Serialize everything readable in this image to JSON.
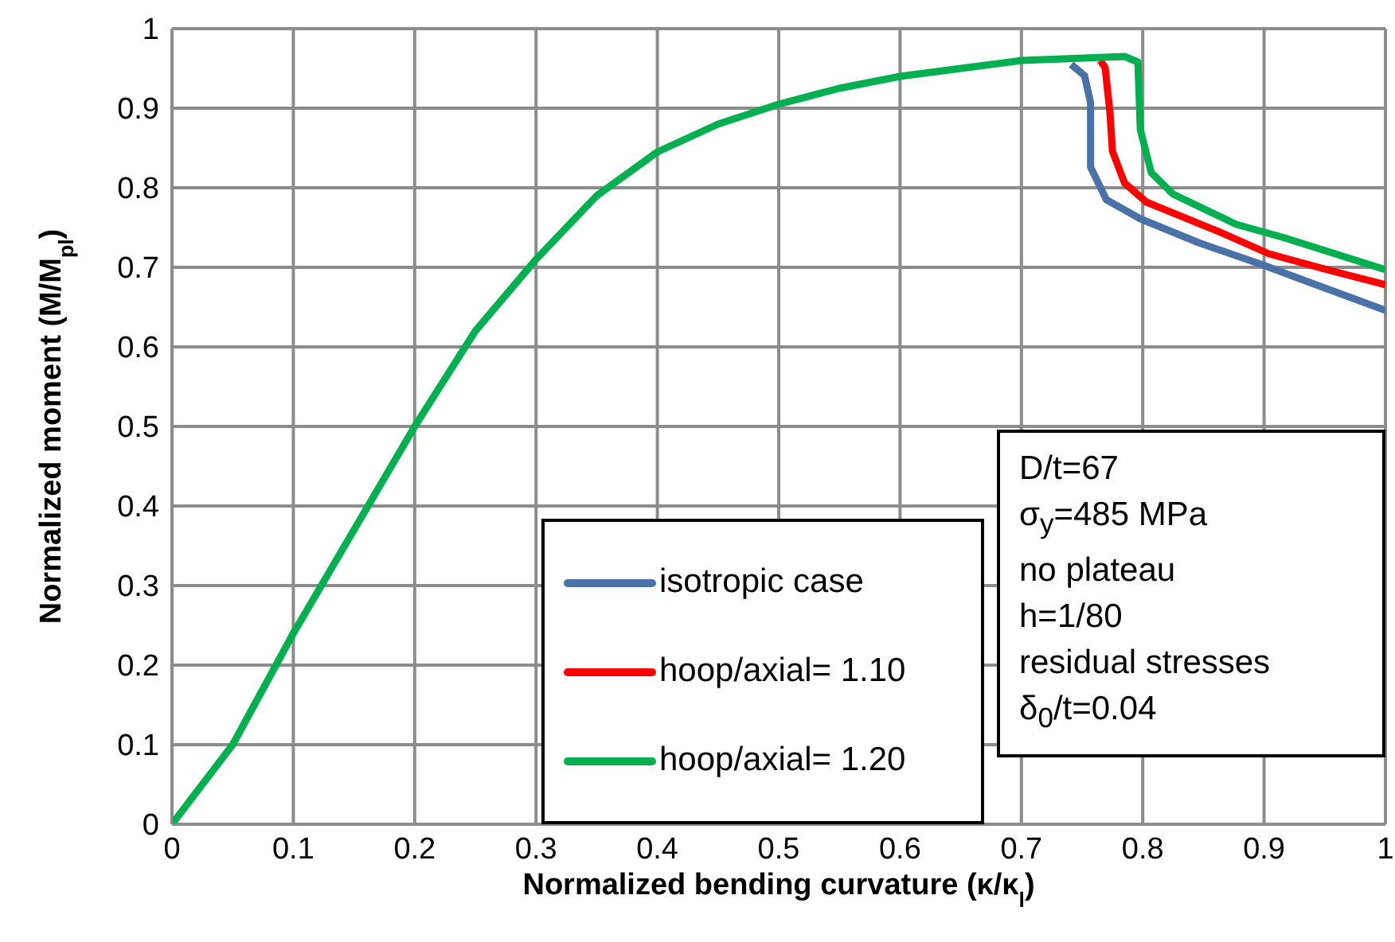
{
  "chart_data": {
    "type": "line",
    "xlabel": "Normalized bending curvature (κ/κ$_{l}$)",
    "ylabel": "Normalized moment (M/M$_{pl}$)",
    "xlim": [
      0,
      1
    ],
    "ylim": [
      0,
      1
    ],
    "xticks": [
      0,
      0.1,
      0.2,
      0.3,
      0.4,
      0.5,
      0.6,
      0.7,
      0.8,
      0.9,
      1
    ],
    "yticks": [
      0,
      0.1,
      0.2,
      0.3,
      0.4,
      0.5,
      0.6,
      0.7,
      0.8,
      0.9,
      1
    ],
    "grid": true,
    "legend": "bottom",
    "marker": "none",
    "line_style": "solid",
    "annotations": [
      "D/t=67",
      "σ$_{y}$=485 MPa",
      "no plateau",
      "h=1/80",
      "residual stresses",
      "δ$_{0}$/t=0.04"
    ],
    "series": [
      {
        "name": "isotropic case",
        "color": "#4a72a8",
        "x": [
          0.741,
          0.752,
          0.757,
          0.757,
          0.77,
          0.798,
          0.846,
          0.899,
          0.934,
          1
        ],
        "values": [
          0.955,
          0.941,
          0.907,
          0.826,
          0.785,
          0.761,
          0.731,
          0.703,
          0.683,
          0.646
        ]
      },
      {
        "name": "hoop/axial= 1.10",
        "color": "#ff0000",
        "x": [
          0.765,
          0.769,
          0.773,
          0.775,
          0.785,
          0.803,
          0.864,
          0.904,
          0.952,
          1
        ],
        "values": [
          0.96,
          0.951,
          0.894,
          0.846,
          0.806,
          0.782,
          0.744,
          0.717,
          0.697,
          0.678
        ]
      },
      {
        "name": "hoop/axial= 1.20",
        "color": "#00b050",
        "x": [
          0,
          0.01,
          0.05,
          0.1,
          0.15,
          0.2,
          0.25,
          0.3,
          0.35,
          0.4,
          0.45,
          0.5,
          0.55,
          0.6,
          0.65,
          0.7,
          0.785,
          0.796,
          0.798,
          0.807,
          0.825,
          0.877,
          0.917,
          1
        ],
        "values": [
          0,
          0.02,
          0.1,
          0.24,
          0.37,
          0.5,
          0.62,
          0.71,
          0.79,
          0.845,
          0.88,
          0.905,
          0.925,
          0.94,
          0.95,
          0.96,
          0.965,
          0.958,
          0.873,
          0.819,
          0.792,
          0.754,
          0.737,
          0.697
        ]
      }
    ]
  }
}
